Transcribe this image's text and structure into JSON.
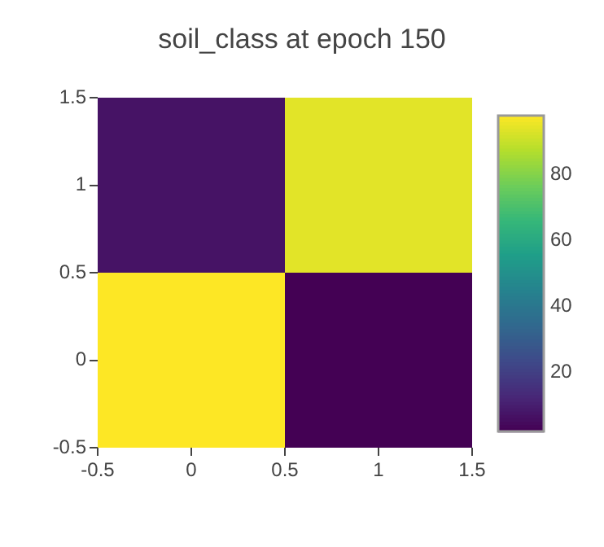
{
  "chart_data": {
    "type": "heatmap",
    "title": "soil_class at epoch 150",
    "x": [
      0,
      1
    ],
    "y": [
      1,
      0
    ],
    "cells": [
      [
        7,
        94
      ],
      [
        98,
        2
      ]
    ],
    "xlim": [
      -0.5,
      1.5
    ],
    "xticks": [
      -0.5,
      0,
      0.5,
      1,
      1.5
    ],
    "ylim": [
      -0.5,
      1.5
    ],
    "yticks": [
      -0.5,
      0,
      0.5,
      1,
      1.5
    ],
    "clim": [
      2,
      98
    ],
    "cticks": [
      20,
      40,
      60,
      80
    ]
  }
}
